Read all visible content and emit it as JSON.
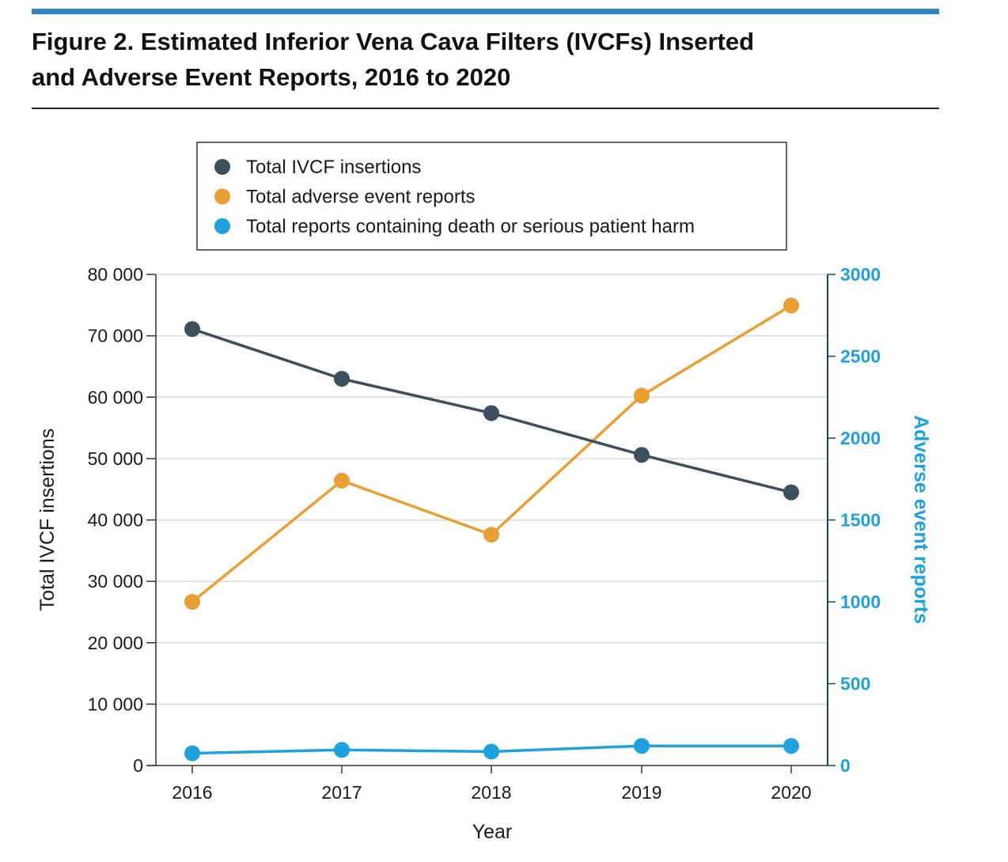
{
  "figure": {
    "title_line1": "Figure 2. Estimated Inferior Vena Cava Filters (IVCFs) Inserted",
    "title_line2": "and Adverse Event Reports, 2016 to 2020",
    "accent_color": "#2E86C1"
  },
  "chart_data": {
    "type": "line",
    "title": "Figure 2. Estimated Inferior Vena Cava Filters (IVCFs) Inserted and Adverse Event Reports, 2016 to 2020",
    "categories": [
      "2016",
      "2017",
      "2018",
      "2019",
      "2020"
    ],
    "xlabel": "Year",
    "ylabel": "Total IVCF insertions",
    "ylabel_right": "Adverse event reports",
    "ylim": [
      0,
      80000
    ],
    "ylim_right": [
      0,
      3000
    ],
    "yticks": [
      "0",
      "10 000",
      "20 000",
      "30 000",
      "40 000",
      "50 000",
      "60 000",
      "70 000",
      "80 000"
    ],
    "yticks_right": [
      "0",
      "500",
      "1000",
      "1500",
      "2000",
      "2500",
      "3000"
    ],
    "grid": true,
    "legend_position": "top",
    "series": [
      {
        "name": "Total IVCF insertions",
        "axis": "left",
        "color": "#3B4F5C",
        "values": [
          71100,
          63000,
          57400,
          50600,
          44500
        ]
      },
      {
        "name": "Total adverse event reports",
        "axis": "right",
        "color": "#E8A035",
        "values": [
          1000,
          1740,
          1410,
          2260,
          2810
        ]
      },
      {
        "name": "Total reports containing death or serious patient harm",
        "axis": "right",
        "color": "#1FA1DB",
        "values": [
          75,
          95,
          85,
          120,
          120
        ]
      }
    ]
  }
}
